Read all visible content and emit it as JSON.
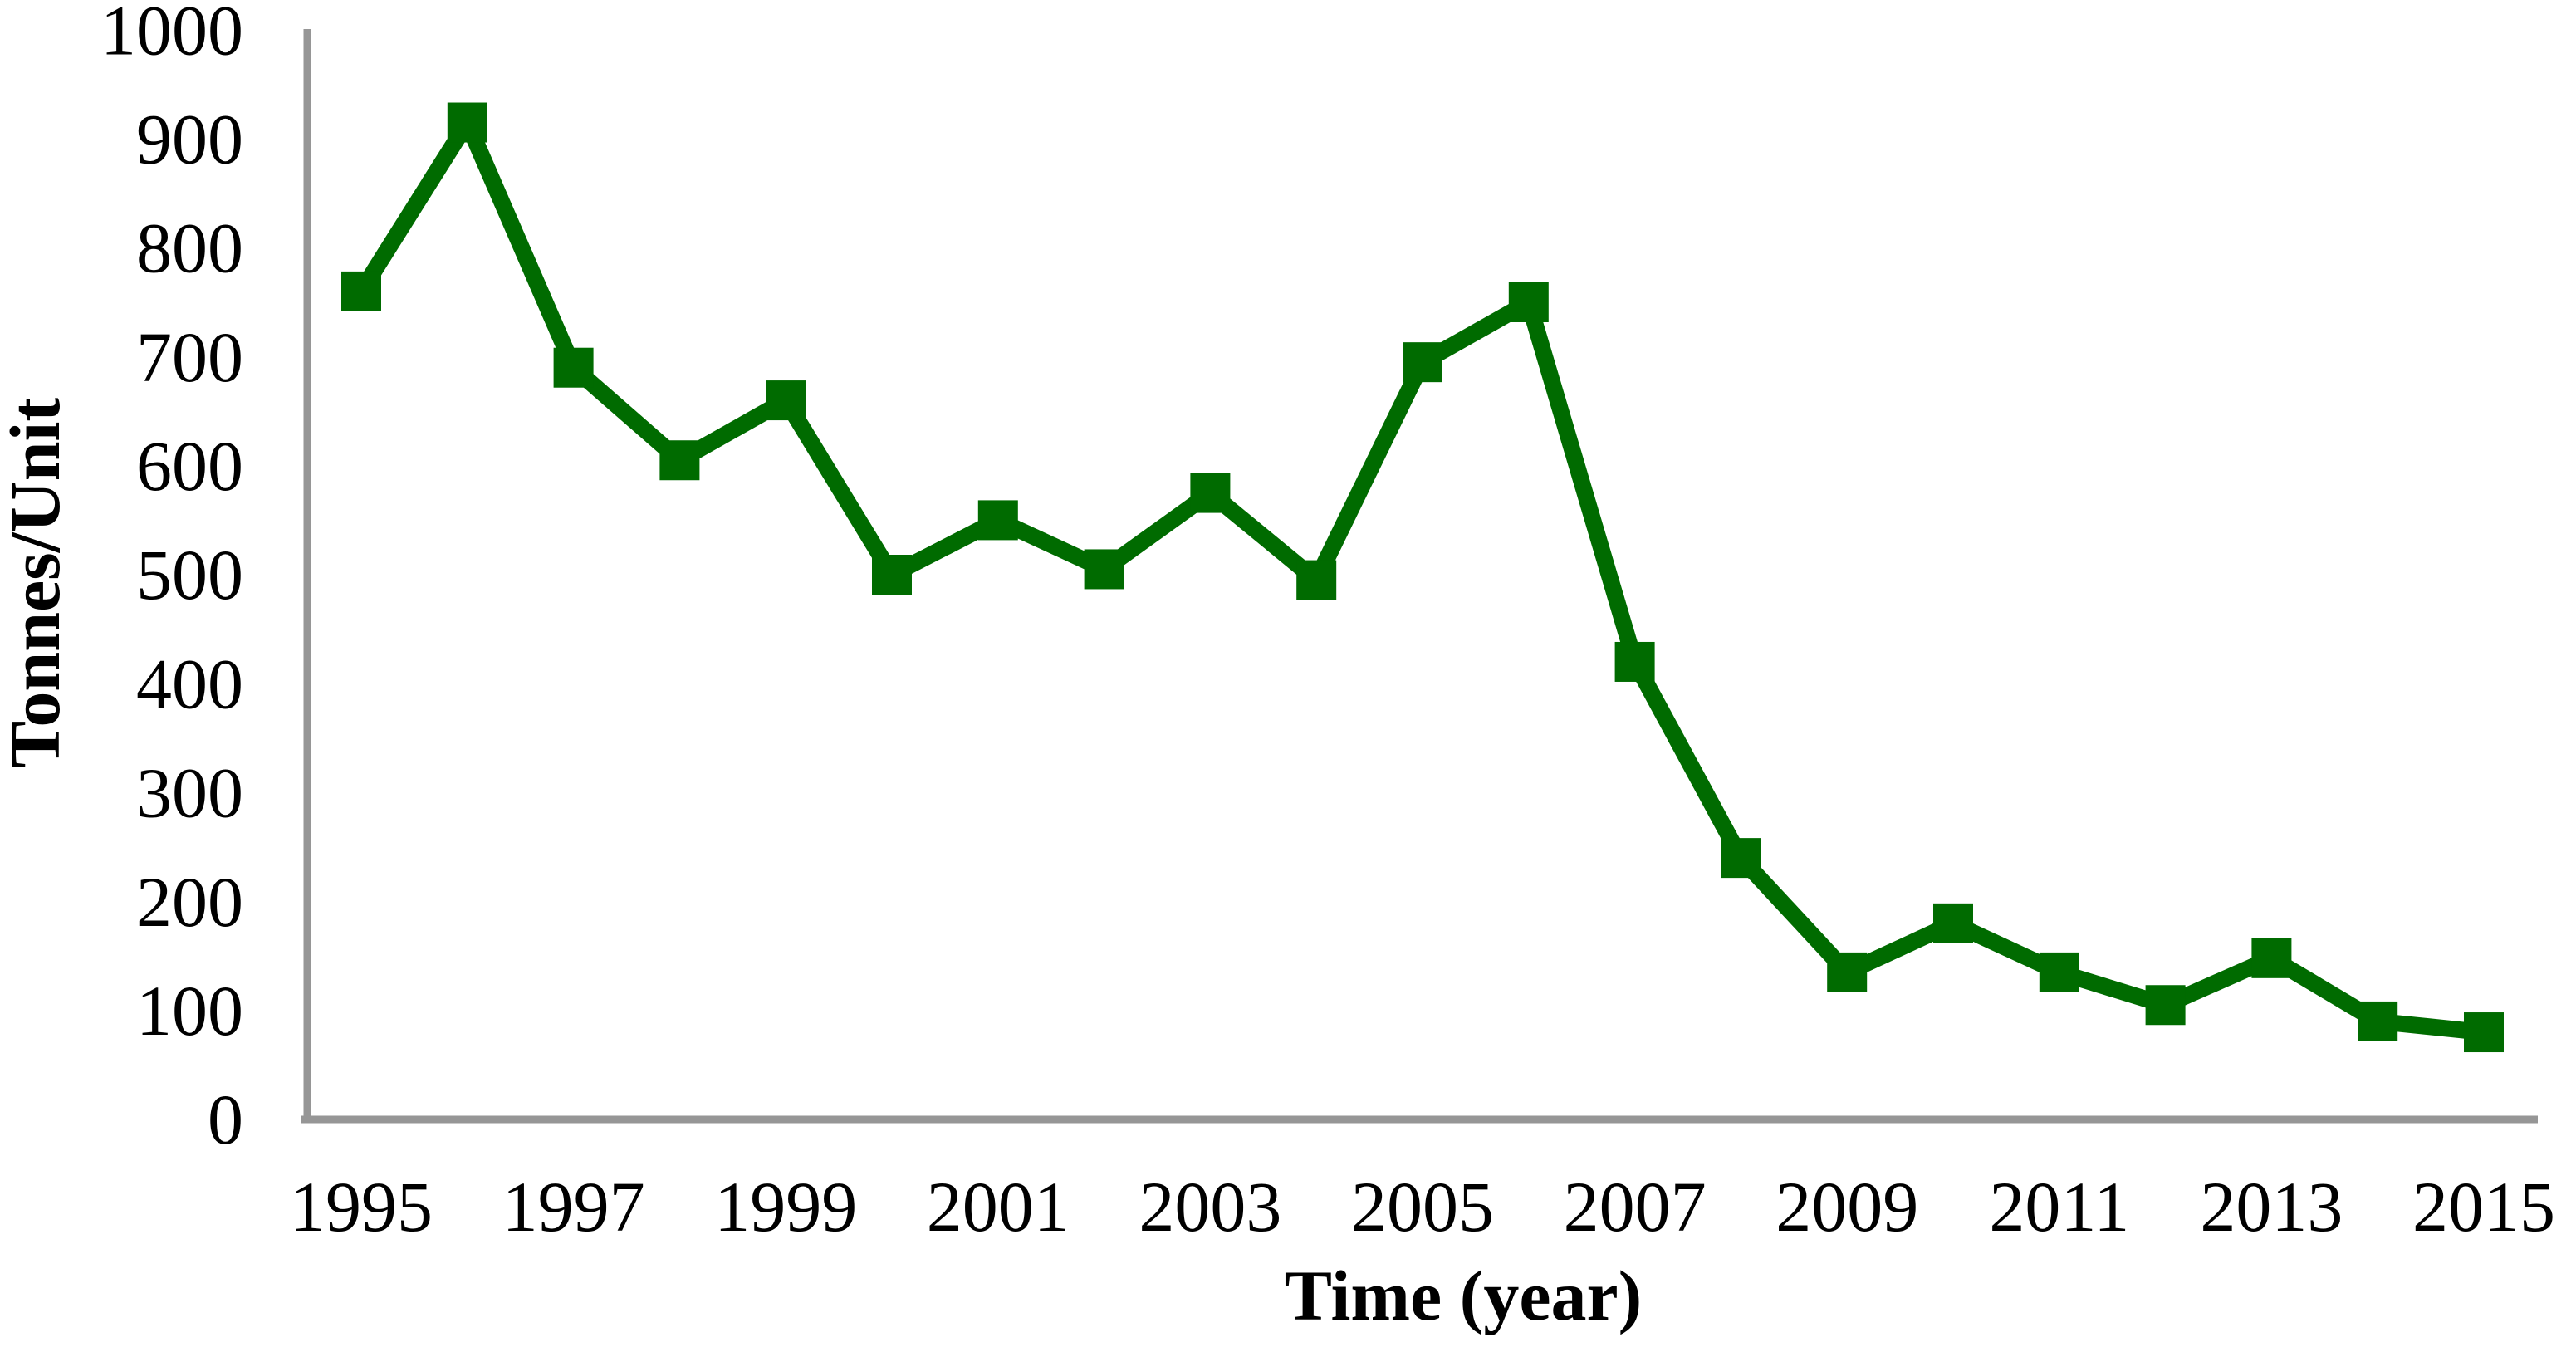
{
  "chart_data": {
    "type": "line",
    "title": "",
    "xlabel": "Time (year)",
    "ylabel": "Tonnes/Unit",
    "series": [
      {
        "name": "Tonnes per unit",
        "x": [
          1995,
          1996,
          1997,
          1998,
          1999,
          2000,
          2001,
          2002,
          2003,
          2004,
          2005,
          2006,
          2007,
          2008,
          2009,
          2010,
          2011,
          2012,
          2013,
          2014,
          2015
        ],
        "values": [
          760,
          915,
          690,
          605,
          660,
          500,
          550,
          505,
          575,
          495,
          695,
          750,
          420,
          240,
          135,
          180,
          135,
          105,
          148,
          90,
          80
        ]
      }
    ],
    "xticks": [
      1995,
      1997,
      1999,
      2001,
      2003,
      2005,
      2007,
      2009,
      2011,
      2013,
      2015
    ],
    "yticks": [
      0,
      100,
      200,
      300,
      400,
      500,
      600,
      700,
      800,
      900,
      1000
    ],
    "xlim": [
      1995,
      2015
    ],
    "ylim": [
      0,
      1000
    ],
    "grid": false,
    "legend": "none",
    "marker": "square",
    "colors": {
      "line": "#006B00",
      "marker": "#006B00",
      "axis": "#969696",
      "text": "#000000",
      "background": "#ffffff"
    }
  }
}
